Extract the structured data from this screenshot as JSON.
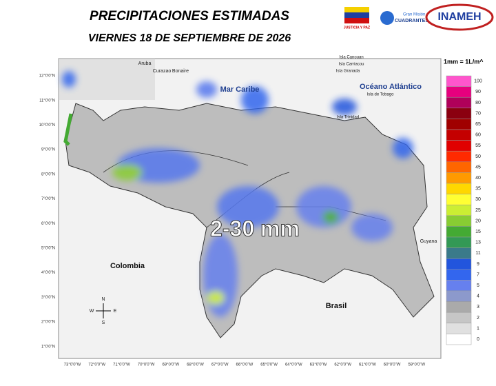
{
  "header": {
    "title": "PRECIPITACIONES ESTIMADAS",
    "date": "VIERNES 18 DE SEPTIEMBRE DE 2026",
    "logos": [
      "JUSTICIA Y PAZ",
      "Gran Misión",
      "CUADRANTES DE PAZ",
      "INAMEH"
    ]
  },
  "map": {
    "labels": [
      {
        "text": "Aruba"
      },
      {
        "text": "Curazao"
      },
      {
        "text": "Bonaire"
      },
      {
        "text": "Mar Caribe"
      },
      {
        "text": "Océano Atlántico"
      },
      {
        "text": "Isla Canouan"
      },
      {
        "text": "Isla Carriacou"
      },
      {
        "text": "Isla Granada"
      },
      {
        "text": "Isla de Tobago"
      },
      {
        "text": "Isla Trinidad"
      },
      {
        "text": "Colombia"
      },
      {
        "text": "Brasil"
      },
      {
        "text": "Guyana"
      },
      {
        "text": "2-30 mm"
      }
    ],
    "compass": [
      "N",
      "S",
      "E",
      "W"
    ],
    "lat_ticks": [
      "12°0'0\"N",
      "11°0'0\"N",
      "10°0'0\"N",
      "9°0'0\"N",
      "8°0'0\"N",
      "7°0'0\"N",
      "6°0'0\"N",
      "5°0'0\"N",
      "4°0'0\"N",
      "3°0'0\"N",
      "2°0'0\"N",
      "1°0'0\"N"
    ],
    "lon_ticks": [
      "73°0'0\"W",
      "72°0'0\"W",
      "71°0'0\"W",
      "70°0'0\"W",
      "69°0'0\"W",
      "68°0'0\"W",
      "67°0'0\"W",
      "66°0'0\"W",
      "65°0'0\"W",
      "64°0'0\"W",
      "63°0'0\"W",
      "62°0'0\"W",
      "61°0'0\"W",
      "60°0'0\"W",
      "59°0'0\"W"
    ]
  },
  "legend": {
    "unit": "1mm = 1L/m^",
    "items": [
      {
        "value": 100,
        "color": "#ff55cc"
      },
      {
        "value": 90,
        "color": "#e6007e"
      },
      {
        "value": 80,
        "color": "#b0005a"
      },
      {
        "value": 70,
        "color": "#8b0010"
      },
      {
        "value": 65,
        "color": "#a00000"
      },
      {
        "value": 60,
        "color": "#c40000"
      },
      {
        "value": 55,
        "color": "#e00000"
      },
      {
        "value": 50,
        "color": "#ff2a00"
      },
      {
        "value": 45,
        "color": "#ff6600"
      },
      {
        "value": 40,
        "color": "#ff9a00"
      },
      {
        "value": 35,
        "color": "#ffd700"
      },
      {
        "value": 30,
        "color": "#ffff33"
      },
      {
        "value": 25,
        "color": "#ccee33"
      },
      {
        "value": 20,
        "color": "#88cc33"
      },
      {
        "value": 15,
        "color": "#44aa33"
      },
      {
        "value": 13,
        "color": "#339955"
      },
      {
        "value": 11,
        "color": "#3a7a8a"
      },
      {
        "value": 9,
        "color": "#2255dd"
      },
      {
        "value": 7,
        "color": "#3366ee"
      },
      {
        "value": 5,
        "color": "#6680ee"
      },
      {
        "value": 4,
        "color": "#8c99cc"
      },
      {
        "value": 3,
        "color": "#aaaaaa"
      },
      {
        "value": 2,
        "color": "#c6c6c6"
      },
      {
        "value": 1,
        "color": "#e0e0e0"
      },
      {
        "value": 0,
        "color": "#ffffff"
      }
    ]
  }
}
